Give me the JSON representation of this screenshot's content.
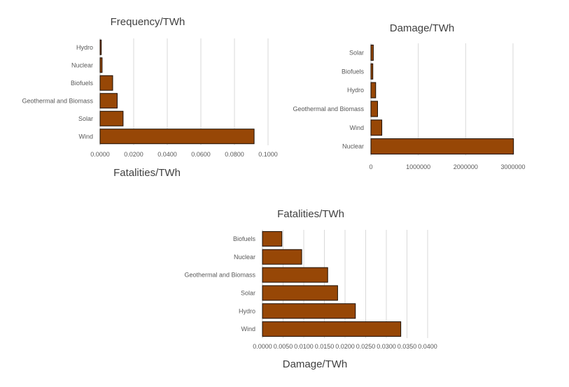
{
  "chart_data": [
    {
      "type": "bar",
      "orientation": "horizontal",
      "title": "Frequency/TWh",
      "xlabel": "Fatalities/TWh",
      "categories": [
        "Wind",
        "Solar",
        "Geothermal and Biomass",
        "Biofuels",
        "Nuclear",
        "Hydro"
      ],
      "values": [
        0.0917,
        0.0137,
        0.0102,
        0.0075,
        0.0012,
        0.0007
      ],
      "xlim": [
        0,
        0.1
      ],
      "ticks": [
        "0.0000",
        "0.0200",
        "0.0400",
        "0.0600",
        "0.0800",
        "0.1000"
      ],
      "tick_values": [
        0,
        0.02,
        0.04,
        0.06,
        0.08,
        0.1
      ]
    },
    {
      "type": "bar",
      "orientation": "horizontal",
      "title": "Damage/TWh",
      "xlabel": "",
      "categories": [
        "Nuclear",
        "Wind",
        "Geothermal and Biomass",
        "Hydro",
        "Biofuels",
        "Solar"
      ],
      "values": [
        3010000,
        230000,
        140000,
        100000,
        40000,
        50000
      ],
      "xlim": [
        0,
        3000000
      ],
      "ticks": [
        "0",
        "1000000",
        "2000000",
        "3000000"
      ],
      "tick_values": [
        0,
        1000000,
        2000000,
        3000000
      ]
    },
    {
      "type": "bar",
      "orientation": "horizontal",
      "title": "Fatalities/TWh",
      "xlabel": "Damage/TWh",
      "categories": [
        "Wind",
        "Hydro",
        "Solar",
        "Geothermal and Biomass",
        "Nuclear",
        "Biofuels"
      ],
      "values": [
        0.0335,
        0.0225,
        0.0182,
        0.0158,
        0.0095,
        0.0047
      ],
      "xlim": [
        0,
        0.04
      ],
      "ticks": [
        "0.0000",
        "0.0050",
        "0.0100",
        "0.0150",
        "0.0200",
        "0.0250",
        "0.0300",
        "0.0350",
        "0.0400"
      ],
      "tick_values": [
        0,
        0.005,
        0.01,
        0.015,
        0.02,
        0.025,
        0.03,
        0.035,
        0.04
      ]
    }
  ]
}
